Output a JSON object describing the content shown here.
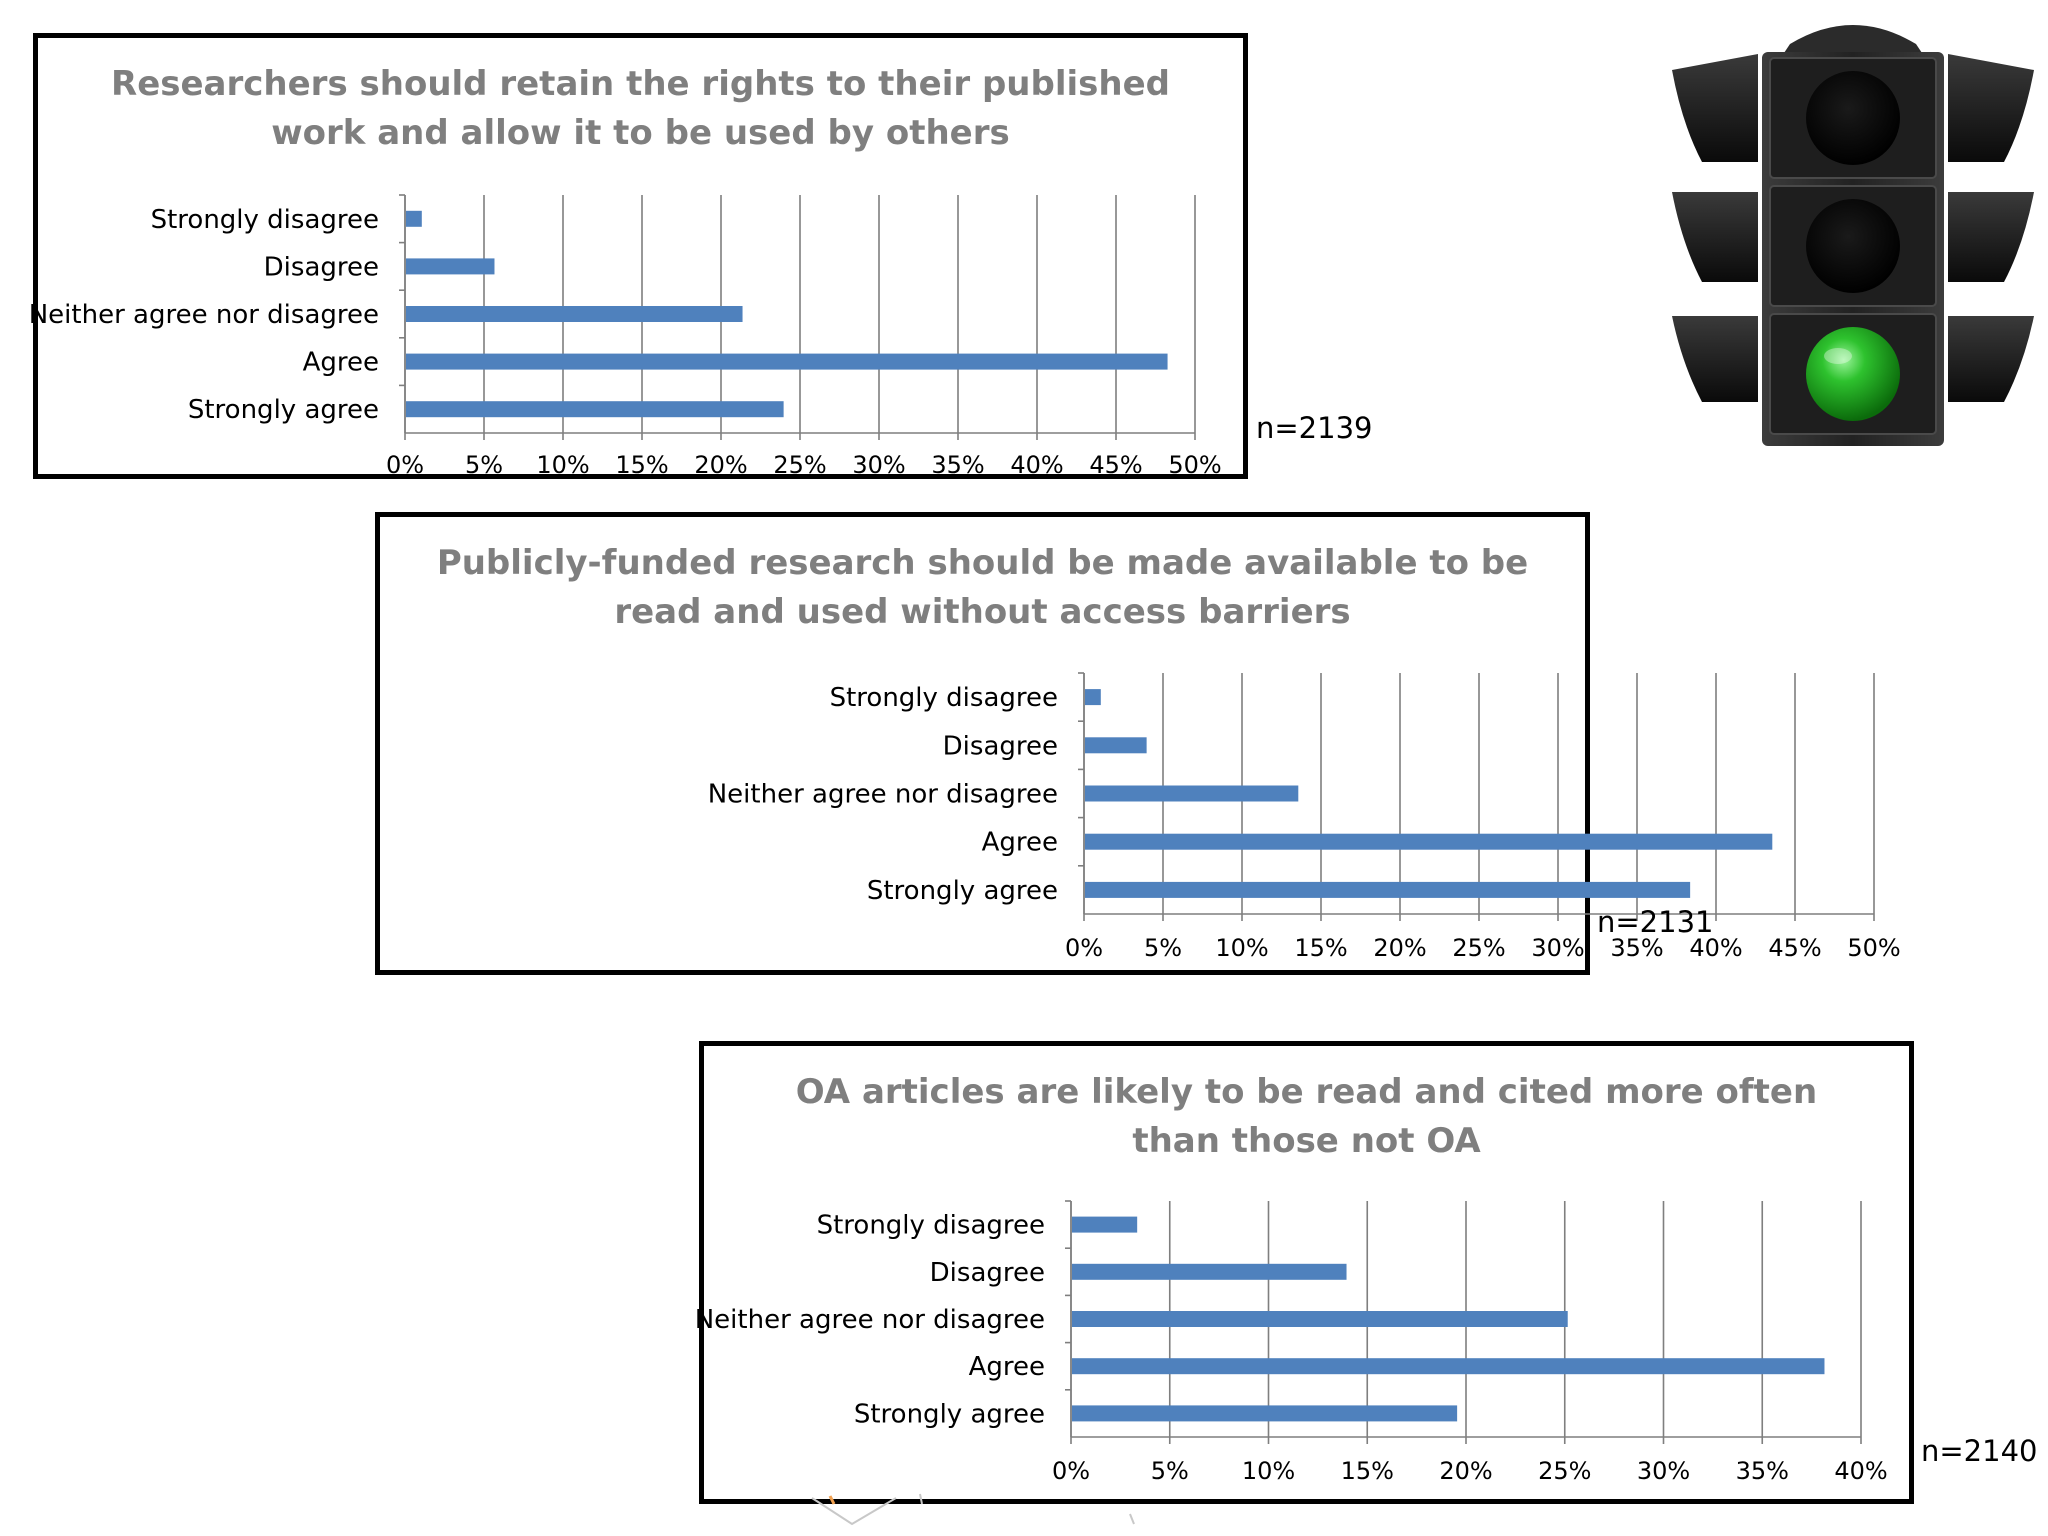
{
  "charts": {
    "c1": {
      "title_line1": "Researchers should retain the rights to their published",
      "title_line2": "work and allow it to be used by others",
      "n_label": "n=2139"
    },
    "c2": {
      "title_line1": "Publicly-funded research should be made available to be",
      "title_line2": "read and used without access barriers",
      "n_label": "n=2131"
    },
    "c3": {
      "title_line1": "OA articles are likely to be read and cited more often",
      "title_line2": "than those not OA",
      "n_label": "n=2140"
    }
  },
  "colors": {
    "bar": "#4f81bd",
    "grid": "#7f7f7f",
    "title": "#7f7f7f",
    "frame": "#000000",
    "traffic_light_body": "#262626",
    "lamp_off": "#080808",
    "lamp_on": "#22b022"
  },
  "icons": {
    "traffic_light": "traffic-light-icon"
  },
  "chart_data": [
    {
      "type": "bar",
      "orientation": "horizontal",
      "title": "Researchers should retain the rights to their published work and allow it to be used by others",
      "categories": [
        "Strongly disagree",
        "Disagree",
        "Neither agree nor disagree",
        "Agree",
        "Strongly agree"
      ],
      "values": [
        1.0,
        5.6,
        21.3,
        48.2,
        23.9
      ],
      "unit": "%",
      "xlim": [
        0,
        50
      ],
      "xticks": [
        "0%",
        "5%",
        "10%",
        "15%",
        "20%",
        "25%",
        "30%",
        "35%",
        "40%",
        "45%",
        "50%"
      ],
      "grid": true,
      "legend": "none",
      "annotation": "n=2139"
    },
    {
      "type": "bar",
      "orientation": "horizontal",
      "title": "Publicly-funded research should be made available to be read and used without access barriers",
      "categories": [
        "Strongly disagree",
        "Disagree",
        "Neither agree nor disagree",
        "Agree",
        "Strongly agree"
      ],
      "values": [
        1.0,
        3.9,
        13.5,
        43.5,
        38.3
      ],
      "unit": "%",
      "xlim": [
        0,
        50
      ],
      "xticks": [
        "0%",
        "5%",
        "10%",
        "15%",
        "20%",
        "25%",
        "30%",
        "35%",
        "40%",
        "45%",
        "50%"
      ],
      "grid": true,
      "legend": "none",
      "annotation": "n=2131"
    },
    {
      "type": "bar",
      "orientation": "horizontal",
      "title": "OA articles are likely to be read and cited more often than those not OA",
      "categories": [
        "Strongly disagree",
        "Disagree",
        "Neither agree nor disagree",
        "Agree",
        "Strongly agree"
      ],
      "values": [
        3.3,
        13.9,
        25.1,
        38.1,
        19.5
      ],
      "unit": "%",
      "xlim": [
        0,
        40
      ],
      "xticks": [
        "0%",
        "5%",
        "10%",
        "15%",
        "20%",
        "25%",
        "30%",
        "35%",
        "40%"
      ],
      "grid": true,
      "legend": "none",
      "annotation": "n=2140"
    }
  ]
}
